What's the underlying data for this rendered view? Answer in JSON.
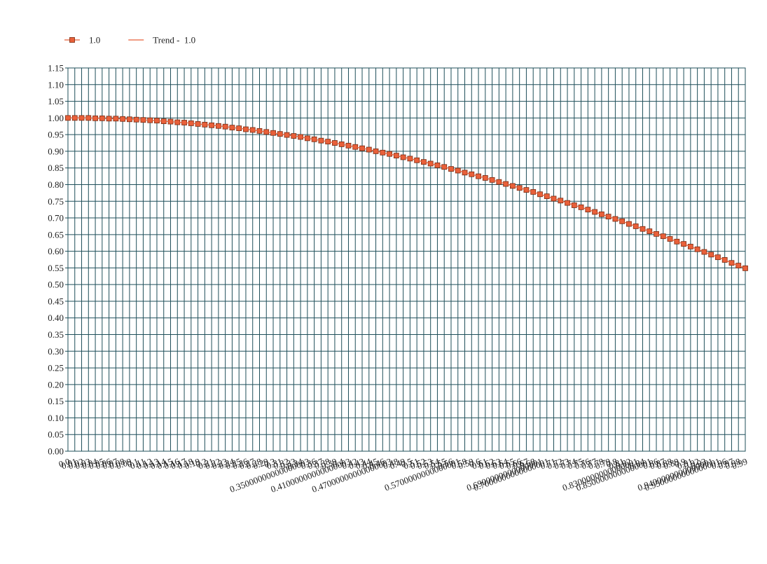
{
  "chart_data": {
    "type": "line",
    "categories": [
      "0.0",
      "0.01",
      "0.02",
      "0.03",
      "0.04",
      "0.05",
      "0.06",
      "0.07",
      "0.08",
      "0.09",
      "0.1",
      "0.11",
      "0.12",
      "0.13",
      "0.14",
      "0.15",
      "0.16",
      "0.17",
      "0.18",
      "0.19",
      "0.2",
      "0.21",
      "0.22",
      "0.23",
      "0.24",
      "0.25",
      "0.26",
      "0.27",
      "0.28",
      "0.29",
      "0.3",
      "0.31",
      "0.32",
      "0.33",
      "0.34",
      "0.35000000000000003",
      "0.36",
      "0.37",
      "0.38",
      "0.39",
      "0.4",
      "0.41000000000000003",
      "0.42",
      "0.43",
      "0.44",
      "0.45",
      "0.46",
      "0.47000000000000003",
      "0.48",
      "0.49",
      "0.5",
      "0.51",
      "0.52",
      "0.53",
      "0.54",
      "0.55",
      "0.56",
      "0.5700000000000001",
      "0.58",
      "0.59",
      "0.6",
      "0.61",
      "0.62",
      "0.63",
      "0.64",
      "0.65",
      "0.66",
      "0.67",
      "0.68",
      "0.6900000000000001",
      "0.7000000000000001",
      "0.71",
      "0.72",
      "0.73",
      "0.74",
      "0.75",
      "0.76",
      "0.77",
      "0.78",
      "0.79",
      "0.8",
      "0.81",
      "0.82",
      "0.8300000000000001",
      "0.84",
      "0.8500000000000001",
      "0.86",
      "0.87",
      "0.88",
      "0.89",
      "0.9",
      "0.91",
      "0.92",
      "0.93",
      "0.9400000000000001",
      "0.9500000000000001",
      "0.96",
      "0.97",
      "0.98",
      "0.99"
    ],
    "series": [
      {
        "name": "1.0",
        "color": "#e8603a",
        "marker": "square",
        "values": [
          1.0,
          1.0,
          1.0,
          1.0,
          0.999,
          0.999,
          0.998,
          0.998,
          0.997,
          0.996,
          0.995,
          0.994,
          0.993,
          0.992,
          0.99,
          0.989,
          0.987,
          0.986,
          0.984,
          0.982,
          0.98,
          0.978,
          0.976,
          0.974,
          0.971,
          0.969,
          0.966,
          0.964,
          0.961,
          0.958,
          0.955,
          0.952,
          0.949,
          0.946,
          0.943,
          0.939,
          0.936,
          0.932,
          0.929,
          0.925,
          0.921,
          0.917,
          0.913,
          0.909,
          0.905,
          0.9,
          0.896,
          0.892,
          0.887,
          0.882,
          0.878,
          0.873,
          0.868,
          0.863,
          0.858,
          0.853,
          0.847,
          0.842,
          0.836,
          0.831,
          0.825,
          0.82,
          0.814,
          0.808,
          0.802,
          0.796,
          0.79,
          0.784,
          0.778,
          0.771,
          0.765,
          0.758,
          0.752,
          0.745,
          0.738,
          0.732,
          0.725,
          0.718,
          0.711,
          0.704,
          0.697,
          0.69,
          0.682,
          0.675,
          0.667,
          0.66,
          0.652,
          0.645,
          0.637,
          0.629,
          0.622,
          0.614,
          0.606,
          0.598,
          0.59,
          0.582,
          0.574,
          0.565,
          0.557,
          0.549
        ]
      },
      {
        "name": "Trend -  1.0",
        "color": "#e8603a",
        "marker": "none",
        "values": [
          1.0,
          1.0,
          1.0,
          1.0,
          0.999,
          0.999,
          0.998,
          0.998,
          0.997,
          0.996,
          0.995,
          0.994,
          0.993,
          0.992,
          0.99,
          0.989,
          0.987,
          0.986,
          0.984,
          0.982,
          0.98,
          0.978,
          0.976,
          0.974,
          0.971,
          0.969,
          0.966,
          0.964,
          0.961,
          0.958,
          0.955,
          0.952,
          0.949,
          0.946,
          0.943,
          0.939,
          0.936,
          0.932,
          0.929,
          0.925,
          0.921,
          0.917,
          0.913,
          0.909,
          0.905,
          0.9,
          0.896,
          0.892,
          0.887,
          0.882,
          0.878,
          0.873,
          0.868,
          0.863,
          0.858,
          0.853,
          0.847,
          0.842,
          0.836,
          0.831,
          0.825,
          0.82,
          0.814,
          0.808,
          0.802,
          0.796,
          0.79,
          0.784,
          0.778,
          0.771,
          0.765,
          0.758,
          0.752,
          0.745,
          0.738,
          0.732,
          0.725,
          0.718,
          0.711,
          0.704,
          0.697,
          0.69,
          0.682,
          0.675,
          0.667,
          0.66,
          0.652,
          0.645,
          0.637,
          0.629,
          0.622,
          0.614,
          0.606,
          0.598,
          0.59,
          0.582,
          0.574,
          0.565,
          0.557,
          0.549
        ]
      }
    ],
    "ylim": [
      0,
      1.15
    ],
    "yticks": [
      {
        "value": 0,
        "label": "0.00"
      },
      {
        "value": 0.05,
        "label": "0.05"
      },
      {
        "value": 0.1,
        "label": "0.10"
      },
      {
        "value": 0.15,
        "label": "0.15"
      },
      {
        "value": 0.2,
        "label": "0.20"
      },
      {
        "value": 0.25,
        "label": "0.25"
      },
      {
        "value": 0.3,
        "label": "0.30"
      },
      {
        "value": 0.35,
        "label": "0.35"
      },
      {
        "value": 0.4,
        "label": "0.40"
      },
      {
        "value": 0.45,
        "label": "0.45"
      },
      {
        "value": 0.5,
        "label": "0.50"
      },
      {
        "value": 0.55,
        "label": "0.55"
      },
      {
        "value": 0.6,
        "label": "0.60"
      },
      {
        "value": 0.65,
        "label": "0.65"
      },
      {
        "value": 0.7,
        "label": "0.70"
      },
      {
        "value": 0.75,
        "label": "0.75"
      },
      {
        "value": 0.8,
        "label": "0.80"
      },
      {
        "value": 0.85,
        "label": "0.85"
      },
      {
        "value": 0.9,
        "label": "0.90"
      },
      {
        "value": 0.95,
        "label": "0.95"
      },
      {
        "value": 1,
        "label": "1.00"
      },
      {
        "value": 1.05,
        "label": "1.05"
      },
      {
        "value": 1.1,
        "label": "1.10"
      },
      {
        "value": 1.15,
        "label": "1.15"
      }
    ],
    "grid": true,
    "grid_color": "#1f4f5a",
    "legend": "top-left"
  }
}
